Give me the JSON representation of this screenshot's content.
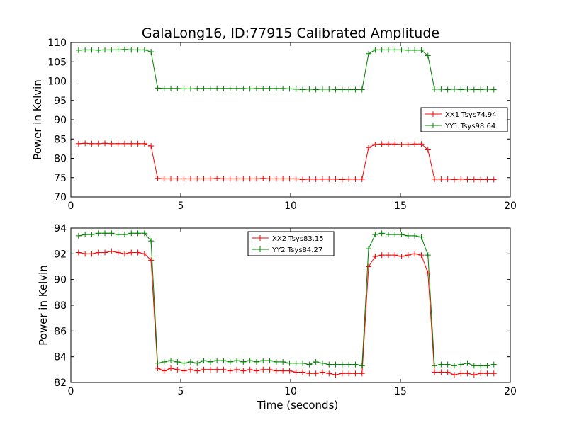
{
  "figure_title": "GalaLong16, ID:77915 Calibrated Amplitude",
  "chart_data": [
    {
      "type": "line",
      "title": "GalaLong16, ID:77915 Calibrated Amplitude",
      "xlabel": "",
      "ylabel": "Power in Kelvin",
      "xlim": [
        0,
        20
      ],
      "ylim": [
        70,
        110
      ],
      "xticks": [
        0,
        5,
        10,
        15,
        20
      ],
      "yticks": [
        70,
        75,
        80,
        85,
        90,
        95,
        100,
        105,
        110
      ],
      "grid": false,
      "legend_position": "right",
      "x": [
        0.35,
        0.65,
        0.95,
        1.25,
        1.55,
        1.85,
        2.15,
        2.45,
        2.75,
        3.05,
        3.35,
        3.65,
        3.95,
        4.25,
        4.55,
        4.85,
        5.15,
        5.45,
        5.75,
        6.05,
        6.35,
        6.65,
        6.95,
        7.25,
        7.55,
        7.85,
        8.15,
        8.45,
        8.75,
        9.05,
        9.35,
        9.65,
        9.95,
        10.25,
        10.55,
        10.85,
        11.15,
        11.45,
        11.75,
        12.05,
        12.35,
        12.65,
        12.95,
        13.25,
        13.55,
        13.85,
        14.15,
        14.45,
        14.75,
        15.05,
        15.35,
        15.65,
        15.95,
        16.25,
        16.55,
        16.85,
        17.15,
        17.45,
        17.75,
        18.05,
        18.35,
        18.65,
        18.95,
        19.25
      ],
      "series": [
        {
          "name": "XX1 Tsys74.94",
          "color": "#ff0000",
          "values": [
            83.8,
            83.9,
            83.8,
            83.8,
            83.9,
            83.8,
            83.8,
            83.8,
            83.8,
            83.8,
            83.8,
            83.2,
            74.8,
            74.7,
            74.7,
            74.7,
            74.7,
            74.7,
            74.7,
            74.7,
            74.7,
            74.8,
            74.7,
            74.7,
            74.7,
            74.7,
            74.7,
            74.7,
            74.8,
            74.7,
            74.7,
            74.7,
            74.7,
            74.7,
            74.5,
            74.6,
            74.6,
            74.6,
            74.6,
            74.6,
            74.5,
            74.6,
            74.6,
            74.6,
            82.8,
            83.6,
            83.7,
            83.7,
            83.7,
            83.6,
            83.6,
            83.7,
            83.7,
            82.2,
            74.6,
            74.6,
            74.6,
            74.5,
            74.6,
            74.5,
            74.5,
            74.5,
            74.5,
            74.5
          ]
        },
        {
          "name": "YY1 Tsys98.64",
          "color": "#008000",
          "values": [
            108.0,
            108.1,
            108.1,
            108.0,
            108.1,
            108.1,
            108.1,
            108.2,
            108.1,
            108.1,
            108.1,
            107.6,
            98.2,
            98.1,
            98.1,
            98.1,
            98.0,
            98.0,
            98.1,
            98.1,
            98.1,
            98.1,
            98.1,
            98.1,
            98.1,
            98.1,
            98.0,
            98.1,
            98.1,
            98.1,
            98.1,
            98.1,
            98.0,
            97.9,
            97.8,
            97.9,
            97.8,
            97.9,
            97.9,
            97.8,
            97.8,
            97.8,
            97.8,
            97.8,
            107.1,
            108.1,
            108.1,
            108.1,
            108.1,
            108.1,
            108.0,
            108.0,
            108.0,
            106.6,
            97.9,
            97.9,
            97.8,
            97.9,
            97.8,
            97.9,
            97.8,
            97.8,
            97.9,
            97.8
          ]
        }
      ]
    },
    {
      "type": "line",
      "title": "",
      "xlabel": "Time (seconds)",
      "ylabel": "Power in Kelvin",
      "xlim": [
        0,
        20
      ],
      "ylim": [
        82,
        94
      ],
      "xticks": [
        0,
        5,
        10,
        15,
        20
      ],
      "yticks": [
        82,
        84,
        86,
        88,
        90,
        92,
        94
      ],
      "grid": false,
      "legend_position": "top-center",
      "x": [
        0.35,
        0.65,
        0.95,
        1.25,
        1.55,
        1.85,
        2.15,
        2.45,
        2.75,
        3.05,
        3.35,
        3.65,
        3.95,
        4.25,
        4.55,
        4.85,
        5.15,
        5.45,
        5.75,
        6.05,
        6.35,
        6.65,
        6.95,
        7.25,
        7.55,
        7.85,
        8.15,
        8.45,
        8.75,
        9.05,
        9.35,
        9.65,
        9.95,
        10.25,
        10.55,
        10.85,
        11.15,
        11.45,
        11.75,
        12.05,
        12.35,
        12.65,
        12.95,
        13.25,
        13.55,
        13.85,
        14.15,
        14.45,
        14.75,
        15.05,
        15.35,
        15.65,
        15.95,
        16.25,
        16.55,
        16.85,
        17.15,
        17.45,
        17.75,
        18.05,
        18.35,
        18.65,
        18.95,
        19.25
      ],
      "series": [
        {
          "name": "XX2 Tsys83.15",
          "color": "#ff0000",
          "values": [
            92.1,
            92.0,
            92.0,
            92.1,
            92.1,
            92.2,
            92.1,
            92.0,
            92.1,
            92.1,
            92.0,
            91.5,
            83.1,
            82.9,
            83.1,
            83.0,
            82.9,
            83.0,
            82.9,
            83.0,
            83.0,
            83.0,
            83.0,
            82.9,
            83.0,
            82.9,
            83.0,
            82.9,
            83.0,
            83.0,
            82.9,
            82.9,
            82.9,
            82.8,
            82.8,
            82.7,
            82.7,
            82.8,
            82.7,
            82.6,
            82.7,
            82.7,
            82.7,
            82.7,
            91.0,
            91.8,
            91.9,
            91.9,
            91.9,
            91.8,
            91.9,
            92.0,
            91.9,
            90.5,
            82.8,
            82.8,
            82.8,
            82.6,
            82.7,
            82.7,
            82.6,
            82.7,
            82.7,
            82.7
          ]
        },
        {
          "name": "YY2 Tsys84.27",
          "color": "#008000",
          "values": [
            93.4,
            93.5,
            93.5,
            93.6,
            93.6,
            93.6,
            93.5,
            93.5,
            93.6,
            93.6,
            93.6,
            93.0,
            83.5,
            83.6,
            83.7,
            83.6,
            83.5,
            83.6,
            83.5,
            83.7,
            83.6,
            83.7,
            83.7,
            83.6,
            83.7,
            83.6,
            83.7,
            83.6,
            83.7,
            83.7,
            83.6,
            83.6,
            83.5,
            83.5,
            83.5,
            83.4,
            83.6,
            83.5,
            83.4,
            83.4,
            83.4,
            83.4,
            83.4,
            83.3,
            92.4,
            93.5,
            93.6,
            93.5,
            93.5,
            93.5,
            93.4,
            93.4,
            93.3,
            91.9,
            83.3,
            83.4,
            83.4,
            83.3,
            83.4,
            83.5,
            83.3,
            83.3,
            83.3,
            83.4
          ]
        }
      ]
    }
  ]
}
